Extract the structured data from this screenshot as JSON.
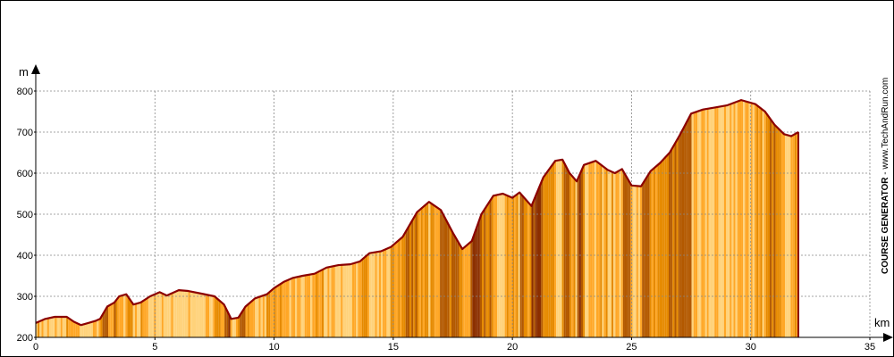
{
  "chart_data": {
    "type": "area",
    "title": "",
    "xlabel": "km",
    "ylabel": "m",
    "xlim": [
      0,
      35
    ],
    "ylim": [
      200,
      800
    ],
    "x_ticks": [
      0,
      5,
      10,
      15,
      20,
      25,
      30,
      35
    ],
    "y_ticks": [
      200,
      300,
      400,
      500,
      600,
      700,
      800
    ],
    "grid": true,
    "credit_bold": "COURSE GENERATOR",
    "credit_rest": " - www.TechAndRun.com",
    "colors": {
      "fill_flat": "#ffd27a",
      "fill_mild": "#ffa726",
      "fill_steep": "#e68a00",
      "fill_very_steep": "#b35900",
      "fill_extreme": "#8b2f00",
      "line": "#8b0000",
      "grid": "#888888"
    },
    "series": [
      {
        "points": [
          [
            0.0,
            235
          ],
          [
            0.4,
            245
          ],
          [
            0.8,
            250
          ],
          [
            1.3,
            250
          ],
          [
            1.6,
            238
          ],
          [
            1.9,
            230
          ],
          [
            2.2,
            235
          ],
          [
            2.5,
            240
          ],
          [
            2.7,
            245
          ],
          [
            3.0,
            275
          ],
          [
            3.3,
            285
          ],
          [
            3.5,
            300
          ],
          [
            3.8,
            305
          ],
          [
            4.1,
            280
          ],
          [
            4.4,
            285
          ],
          [
            4.8,
            300
          ],
          [
            5.2,
            310
          ],
          [
            5.5,
            302
          ],
          [
            6.0,
            315
          ],
          [
            6.4,
            313
          ],
          [
            7.0,
            306
          ],
          [
            7.5,
            300
          ],
          [
            7.9,
            280
          ],
          [
            8.2,
            245
          ],
          [
            8.5,
            248
          ],
          [
            8.8,
            275
          ],
          [
            9.2,
            295
          ],
          [
            9.7,
            305
          ],
          [
            10.0,
            320
          ],
          [
            10.4,
            335
          ],
          [
            10.8,
            345
          ],
          [
            11.2,
            350
          ],
          [
            11.7,
            355
          ],
          [
            12.2,
            370
          ],
          [
            12.7,
            376
          ],
          [
            13.2,
            378
          ],
          [
            13.6,
            385
          ],
          [
            14.0,
            405
          ],
          [
            14.5,
            410
          ],
          [
            14.9,
            420
          ],
          [
            15.4,
            445
          ],
          [
            16.0,
            505
          ],
          [
            16.5,
            530
          ],
          [
            17.0,
            510
          ],
          [
            17.5,
            455
          ],
          [
            17.9,
            415
          ],
          [
            18.3,
            435
          ],
          [
            18.7,
            500
          ],
          [
            19.2,
            545
          ],
          [
            19.6,
            550
          ],
          [
            20.0,
            540
          ],
          [
            20.3,
            553
          ],
          [
            20.8,
            520
          ],
          [
            21.3,
            590
          ],
          [
            21.8,
            630
          ],
          [
            22.1,
            633
          ],
          [
            22.4,
            600
          ],
          [
            22.7,
            580
          ],
          [
            23.0,
            620
          ],
          [
            23.5,
            630
          ],
          [
            24.0,
            608
          ],
          [
            24.3,
            600
          ],
          [
            24.6,
            610
          ],
          [
            25.0,
            570
          ],
          [
            25.4,
            568
          ],
          [
            25.8,
            605
          ],
          [
            26.2,
            625
          ],
          [
            26.6,
            650
          ],
          [
            27.0,
            690
          ],
          [
            27.5,
            745
          ],
          [
            28.0,
            755
          ],
          [
            28.5,
            760
          ],
          [
            29.0,
            765
          ],
          [
            29.6,
            778
          ],
          [
            30.2,
            768
          ],
          [
            30.6,
            750
          ],
          [
            31.0,
            718
          ],
          [
            31.4,
            695
          ],
          [
            31.7,
            690
          ],
          [
            32.0,
            700
          ]
        ]
      }
    ]
  }
}
